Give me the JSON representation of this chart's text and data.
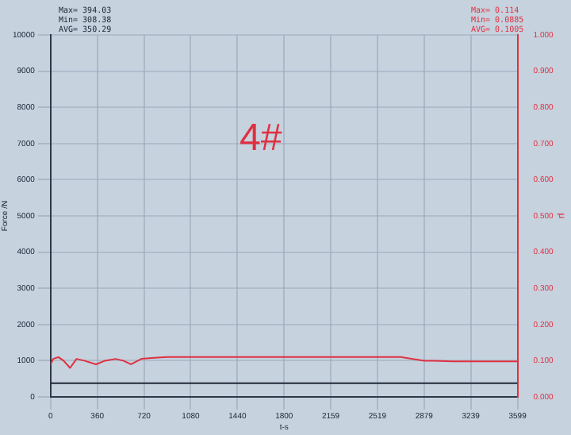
{
  "chart_data": {
    "type": "line",
    "xlabel": "t-s",
    "ylabel": "Force /N",
    "y2label": "μ",
    "x": [
      0,
      3599
    ],
    "series": [
      {
        "color": "#202838",
        "values": [
          380,
          380
        ]
      },
      {
        "color": "#e03040",
        "axis": "y2",
        "x": [
          0,
          20,
          60,
          100,
          150,
          200,
          260,
          350,
          420,
          500,
          560,
          620,
          700,
          800,
          900,
          1200,
          1500,
          1800,
          2100,
          2400,
          2700,
          2880,
          2950,
          3100,
          3300,
          3599
        ],
        "values": [
          0.09,
          0.105,
          0.11,
          0.1,
          0.08,
          0.105,
          0.1,
          0.09,
          0.1,
          0.105,
          0.1,
          0.09,
          0.105,
          0.108,
          0.11,
          0.11,
          0.11,
          0.11,
          0.11,
          0.11,
          0.11,
          0.1,
          0.1,
          0.098,
          0.098,
          0.098
        ]
      }
    ],
    "xlim": [
      0,
      3599
    ],
    "xticks": [
      0,
      360,
      720,
      1080,
      1440,
      1800,
      2159,
      2519,
      2879,
      3239,
      3599
    ],
    "ylim": [
      0,
      10000
    ],
    "yticks": [
      0,
      1000,
      2000,
      3000,
      4000,
      5000,
      6000,
      7000,
      8000,
      9000,
      10000
    ],
    "y2lim": [
      0,
      1
    ],
    "y2ticks": [
      {
        "value": 0,
        "label": "0.000"
      },
      {
        "value": 0.1,
        "label": "0.100"
      },
      {
        "value": 0.2,
        "label": "0.200"
      },
      {
        "value": 0.3,
        "label": "0.300"
      },
      {
        "value": 0.4,
        "label": "0.400"
      },
      {
        "value": 0.5,
        "label": "0.500"
      },
      {
        "value": 0.6,
        "label": "0.600"
      },
      {
        "value": 0.7,
        "label": "0.700"
      },
      {
        "value": 0.8,
        "label": "0.800"
      },
      {
        "value": 0.9,
        "label": "0.900"
      },
      {
        "value": 1,
        "label": "1.000"
      }
    ],
    "grid": true,
    "marker": "none",
    "line_style": "solid",
    "annotations": [
      "Max= 394.03",
      "Min= 308.38",
      "AVG= 350.29",
      "Max= 0.114",
      "Min= 0.0885",
      "AVG= 0.1005",
      "4#"
    ]
  }
}
